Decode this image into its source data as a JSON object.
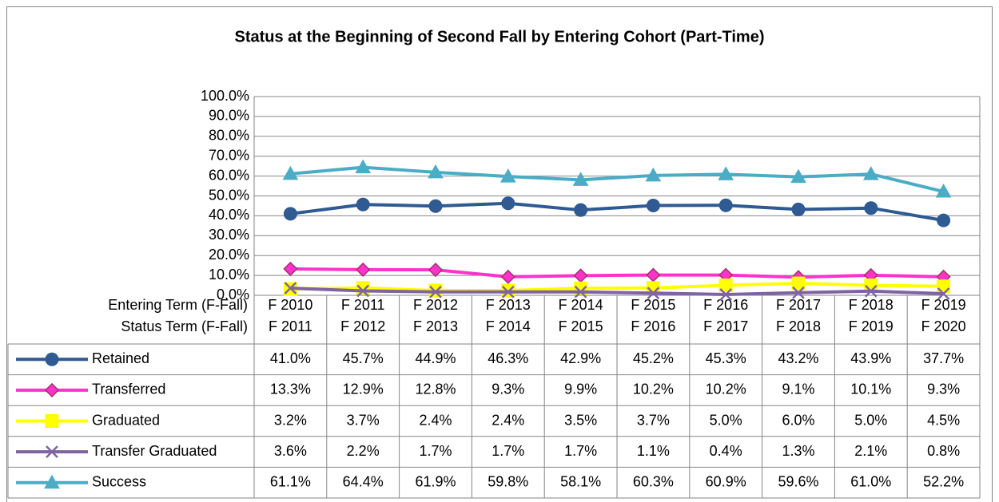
{
  "chart_data": {
    "type": "line",
    "title": "Status at the Beginning of Second Fall by Entering Cohort (Part-Time)",
    "category_rows": [
      {
        "label": "Entering Term (F-Fall)",
        "values": [
          "F 2010",
          "F 2011",
          "F 2012",
          "F 2013",
          "F 2014",
          "F 2015",
          "F 2016",
          "F 2017",
          "F 2018",
          "F 2019"
        ]
      },
      {
        "label": "Status Term (F-Fall)",
        "values": [
          "F 2011",
          "F 2012",
          "F 2013",
          "F 2014",
          "F 2015",
          "F 2016",
          "F 2017",
          "F 2018",
          "F 2019",
          "F 2020"
        ]
      }
    ],
    "ylim": [
      0,
      100
    ],
    "yticks": [
      {
        "value": 0,
        "label": "0.0%"
      },
      {
        "value": 10,
        "label": "10.0%"
      },
      {
        "value": 20,
        "label": "20.0%"
      },
      {
        "value": 30,
        "label": "30.0%"
      },
      {
        "value": 40,
        "label": "40.0%"
      },
      {
        "value": 50,
        "label": "50.0%"
      },
      {
        "value": 60,
        "label": "60.0%"
      },
      {
        "value": 70,
        "label": "70.0%"
      },
      {
        "value": 80,
        "label": "80.0%"
      },
      {
        "value": 90,
        "label": "90.0%"
      },
      {
        "value": 100,
        "label": "100.0%"
      }
    ],
    "grid": true,
    "series": [
      {
        "name": "Retained",
        "color": "#2f5a92",
        "marker": "circle",
        "values": [
          41.0,
          45.7,
          44.9,
          46.3,
          42.9,
          45.2,
          45.3,
          43.2,
          43.9,
          37.7
        ],
        "value_labels": [
          "41.0%",
          "45.7%",
          "44.9%",
          "46.3%",
          "42.9%",
          "45.2%",
          "45.3%",
          "43.2%",
          "43.9%",
          "37.7%"
        ]
      },
      {
        "name": "Transferred",
        "color": "#ff33cc",
        "marker": "diamond",
        "values": [
          13.3,
          12.9,
          12.8,
          9.3,
          9.9,
          10.2,
          10.2,
          9.1,
          10.1,
          9.3
        ],
        "value_labels": [
          "13.3%",
          "12.9%",
          "12.8%",
          "9.3%",
          "9.9%",
          "10.2%",
          "10.2%",
          "9.1%",
          "10.1%",
          "9.3%"
        ]
      },
      {
        "name": "Graduated",
        "color": "#ffff00",
        "marker": "square",
        "values": [
          3.2,
          3.7,
          2.4,
          2.4,
          3.5,
          3.7,
          5.0,
          6.0,
          5.0,
          4.5
        ],
        "value_labels": [
          "3.2%",
          "3.7%",
          "2.4%",
          "2.4%",
          "3.5%",
          "3.7%",
          "5.0%",
          "6.0%",
          "5.0%",
          "4.5%"
        ]
      },
      {
        "name": "Transfer Graduated",
        "color": "#8064a2",
        "marker": "x",
        "values": [
          3.6,
          2.2,
          1.7,
          1.7,
          1.7,
          1.1,
          0.4,
          1.3,
          2.1,
          0.8
        ],
        "value_labels": [
          "3.6%",
          "2.2%",
          "1.7%",
          "1.7%",
          "1.7%",
          "1.1%",
          "0.4%",
          "1.3%",
          "2.1%",
          "0.8%"
        ]
      },
      {
        "name": "Success",
        "color": "#4bacc6",
        "marker": "triangle",
        "values": [
          61.1,
          64.4,
          61.9,
          59.8,
          58.1,
          60.3,
          60.9,
          59.6,
          61.0,
          52.2
        ],
        "value_labels": [
          "61.1%",
          "64.4%",
          "61.9%",
          "59.8%",
          "58.1%",
          "60.3%",
          "60.9%",
          "59.6%",
          "61.0%",
          "52.2%"
        ]
      }
    ]
  }
}
